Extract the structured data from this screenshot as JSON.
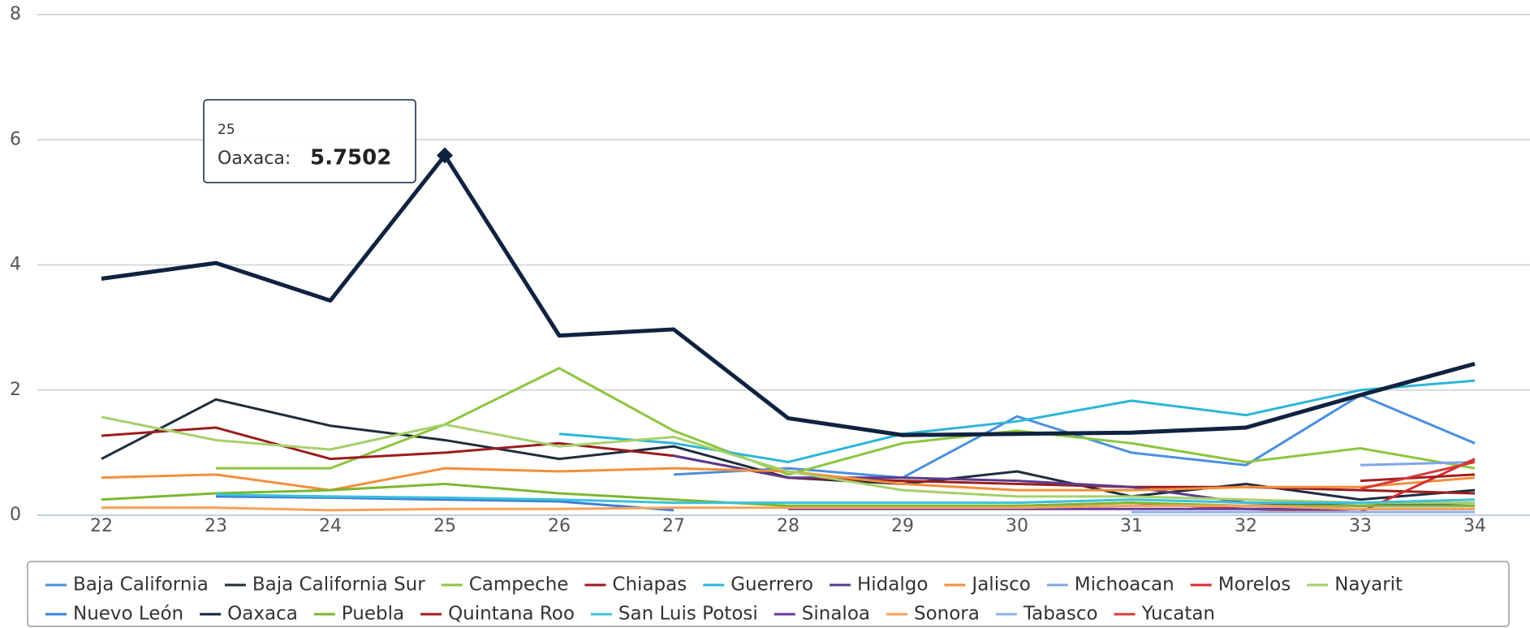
{
  "chart_data": {
    "type": "line",
    "categories": [
      "22",
      "23",
      "24",
      "25",
      "26",
      "27",
      "28",
      "29",
      "30",
      "31",
      "32",
      "33",
      "34"
    ],
    "ylim": [
      0,
      8
    ],
    "yticks": [
      0,
      2,
      4,
      6,
      8
    ],
    "grid": true,
    "series": [
      {
        "name": "Baja California",
        "color": "#4a8fe0",
        "values": [
          null,
          null,
          null,
          null,
          null,
          0.65,
          0.75,
          0.6,
          1.58,
          1.0,
          0.8,
          1.92,
          1.15
        ]
      },
      {
        "name": "Baja California Sur",
        "color": "#1f2d3d",
        "values": [
          0.9,
          1.85,
          1.43,
          1.2,
          0.9,
          1.1,
          0.6,
          0.5,
          0.7,
          0.3,
          0.5,
          0.25,
          0.4
        ]
      },
      {
        "name": "Campeche",
        "color": "#8cc63f",
        "values": [
          null,
          0.75,
          0.75,
          1.45,
          2.35,
          1.35,
          0.65,
          1.15,
          1.35,
          1.15,
          0.85,
          1.07,
          0.75
        ]
      },
      {
        "name": "Chiapas",
        "color": "#9b1c1c",
        "values": [
          1.27,
          1.4,
          0.9,
          1.0,
          1.15,
          0.95,
          0.6,
          0.55,
          0.5,
          0.45,
          0.45,
          0.4,
          0.35
        ]
      },
      {
        "name": "Guerrero",
        "color": "#2bb5d8",
        "values": [
          null,
          null,
          null,
          null,
          1.3,
          1.15,
          0.85,
          1.3,
          1.5,
          1.83,
          1.6,
          2.0,
          2.15
        ]
      },
      {
        "name": "Hidalgo",
        "color": "#5c3a8e",
        "values": [
          null,
          null,
          null,
          null,
          null,
          0.95,
          0.6,
          0.6,
          0.55,
          0.45,
          0.2,
          0.15,
          0.2
        ]
      },
      {
        "name": "Jalisco",
        "color": "#f28f3b",
        "values": [
          0.6,
          0.65,
          0.4,
          0.75,
          0.7,
          0.75,
          0.7,
          0.5,
          0.4,
          0.4,
          0.45,
          0.45,
          0.6
        ]
      },
      {
        "name": "Michoacan",
        "color": "#7ea6e8",
        "values": [
          null,
          null,
          null,
          null,
          null,
          null,
          null,
          null,
          null,
          null,
          null,
          0.8,
          0.85
        ]
      },
      {
        "name": "Morelos",
        "color": "#d62e2e",
        "values": [
          null,
          null,
          null,
          null,
          null,
          null,
          null,
          0.12,
          0.15,
          0.2,
          0.1,
          0.05,
          0.9
        ]
      },
      {
        "name": "Nayarit",
        "color": "#a6d06a",
        "values": [
          1.57,
          1.2,
          1.05,
          1.45,
          1.1,
          1.25,
          0.7,
          0.4,
          0.3,
          0.3,
          0.25,
          0.2,
          0.2
        ]
      },
      {
        "name": "Nuevo León",
        "color": "#3b7fdb",
        "values": [
          null,
          0.3,
          0.28,
          0.25,
          0.22,
          0.08,
          null,
          null,
          null,
          null,
          null,
          null,
          null
        ]
      },
      {
        "name": "Oaxaca",
        "color": "#0f2340",
        "values": [
          3.78,
          4.03,
          3.43,
          5.7502,
          2.87,
          2.97,
          1.55,
          1.28,
          1.3,
          1.32,
          1.4,
          1.92,
          2.42
        ]
      },
      {
        "name": "Puebla",
        "color": "#7ab82e",
        "values": [
          0.25,
          0.35,
          0.4,
          0.5,
          0.35,
          0.25,
          0.15,
          0.15,
          0.15,
          0.2,
          0.15,
          0.15,
          0.15
        ]
      },
      {
        "name": "Quintana Roo",
        "color": "#a11e1e",
        "values": [
          null,
          null,
          null,
          null,
          null,
          null,
          null,
          null,
          null,
          null,
          null,
          0.55,
          0.65
        ]
      },
      {
        "name": "San Luis Potosi",
        "color": "#3cc0dc",
        "values": [
          null,
          0.33,
          0.3,
          0.28,
          0.25,
          0.2,
          0.2,
          0.2,
          0.2,
          0.25,
          0.2,
          0.2,
          0.25
        ]
      },
      {
        "name": "Sinaloa",
        "color": "#6a3d9a",
        "values": [
          null,
          null,
          null,
          null,
          null,
          null,
          0.1,
          0.1,
          0.1,
          0.1,
          0.1,
          0.1,
          0.1
        ]
      },
      {
        "name": "Sonora",
        "color": "#f5a15a",
        "values": [
          0.12,
          0.12,
          0.08,
          0.1,
          0.1,
          0.12,
          0.12,
          0.12,
          0.12,
          0.15,
          0.15,
          0.1,
          0.1
        ]
      },
      {
        "name": "Tabasco",
        "color": "#8fb0ef",
        "values": [
          null,
          null,
          null,
          null,
          null,
          null,
          null,
          null,
          null,
          0.05,
          0.05,
          0.05,
          0.05
        ]
      },
      {
        "name": "Yucatan",
        "color": "#d43a3a",
        "values": [
          null,
          null,
          null,
          null,
          null,
          null,
          null,
          null,
          null,
          null,
          null,
          0.42,
          0.85
        ]
      }
    ],
    "tooltip": {
      "header": "25",
      "series": "Oaxaca:",
      "value": "5.7502",
      "series_index": 11,
      "point_index": 3
    }
  }
}
